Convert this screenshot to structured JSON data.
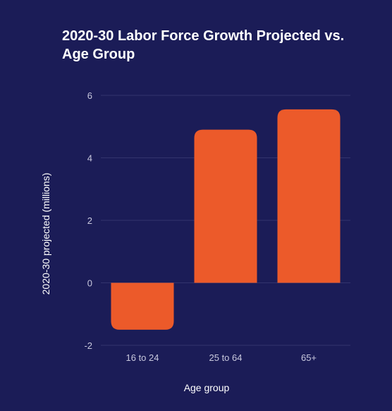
{
  "chart_data": {
    "type": "bar",
    "title": "2020-30 Labor Force Growth Projected vs. Age Group",
    "xlabel": "Age group",
    "ylabel": "2020-30 projected (millions)",
    "categories": [
      "16 to 24",
      "25 to 64",
      "65+"
    ],
    "values": [
      -1.5,
      4.9,
      5.55
    ],
    "ylim": [
      -2,
      6
    ],
    "yticks": [
      -2,
      0,
      2,
      4,
      6
    ],
    "ytick_labels": [
      "-2",
      "0",
      "2",
      "4",
      "6"
    ],
    "grid": true,
    "legend": "none",
    "colors": {
      "background": "#1b1c57",
      "bar": "#ec5a2a",
      "grid": "#33346d",
      "text": "#ffffff",
      "tick_text": "#c9c9de"
    }
  }
}
